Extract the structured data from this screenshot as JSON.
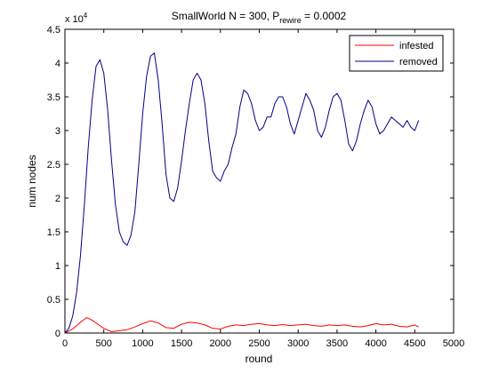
{
  "chart_data": {
    "type": "line",
    "title_main": "SmallWorld N = 300, P",
    "title_sub": "rewire",
    "title_tail": " = 0.0002",
    "xlabel": "round",
    "ylabel": "num nodes",
    "y_exponent_base": "x 10",
    "y_exponent_power": "4",
    "xlim": [
      0,
      5000
    ],
    "ylim": [
      0,
      45000
    ],
    "x_ticks": [
      0,
      500,
      1000,
      1500,
      2000,
      2500,
      3000,
      3500,
      4000,
      4500,
      5000
    ],
    "x_tick_labels": [
      "0",
      "500",
      "1000",
      "1500",
      "2000",
      "2500",
      "3000",
      "3500",
      "4000",
      "4500",
      "5000"
    ],
    "y_ticks": [
      0,
      5000,
      10000,
      15000,
      20000,
      25000,
      30000,
      35000,
      40000,
      45000
    ],
    "y_tick_labels": [
      "0",
      "0.5",
      "1",
      "1.5",
      "2",
      "2.5",
      "3",
      "3.5",
      "4",
      "4.5"
    ],
    "grid": false,
    "legend_position": "top-right",
    "series": [
      {
        "name": "infested",
        "color": "#ff0000",
        "x": [
          0,
          100,
          200,
          280,
          350,
          400,
          500,
          600,
          700,
          800,
          900,
          1000,
          1100,
          1200,
          1300,
          1400,
          1500,
          1600,
          1700,
          1800,
          1900,
          2000,
          2100,
          2200,
          2300,
          2400,
          2500,
          2600,
          2700,
          2800,
          2900,
          3000,
          3100,
          3200,
          3300,
          3400,
          3500,
          3600,
          3700,
          3800,
          3900,
          4000,
          4100,
          4200,
          4300,
          4400,
          4500,
          4550
        ],
        "y": [
          0,
          600,
          1600,
          2300,
          1900,
          1500,
          700,
          200,
          350,
          500,
          900,
          1400,
          1800,
          1500,
          800,
          700,
          1300,
          1600,
          1500,
          1200,
          700,
          600,
          1000,
          1200,
          1100,
          1300,
          1400,
          1200,
          1100,
          1250,
          1100,
          1200,
          1300,
          1100,
          1000,
          1200,
          1100,
          1200,
          1000,
          900,
          1100,
          1400,
          1200,
          1300,
          1000,
          900,
          1200,
          900
        ]
      },
      {
        "name": "removed",
        "color": "#00008b",
        "x": [
          0,
          50,
          100,
          150,
          200,
          250,
          300,
          350,
          400,
          450,
          500,
          550,
          600,
          650,
          700,
          750,
          800,
          850,
          900,
          950,
          1000,
          1050,
          1100,
          1150,
          1200,
          1250,
          1300,
          1350,
          1400,
          1450,
          1500,
          1550,
          1600,
          1650,
          1700,
          1750,
          1800,
          1850,
          1900,
          1950,
          2000,
          2050,
          2100,
          2150,
          2200,
          2250,
          2300,
          2350,
          2400,
          2450,
          2500,
          2550,
          2600,
          2650,
          2700,
          2750,
          2800,
          2850,
          2900,
          2950,
          3000,
          3050,
          3100,
          3150,
          3200,
          3250,
          3300,
          3350,
          3400,
          3450,
          3500,
          3550,
          3600,
          3650,
          3700,
          3750,
          3800,
          3850,
          3900,
          3950,
          4000,
          4050,
          4100,
          4150,
          4200,
          4250,
          4300,
          4350,
          4400,
          4450,
          4500,
          4550
        ],
        "y": [
          0,
          700,
          2500,
          6000,
          11500,
          19000,
          27500,
          34500,
          39500,
          40500,
          38500,
          33000,
          25500,
          19000,
          15000,
          13500,
          13000,
          14500,
          18000,
          25000,
          32500,
          38000,
          41000,
          41500,
          37500,
          31000,
          23500,
          20000,
          19500,
          21500,
          25500,
          30000,
          34000,
          37500,
          38500,
          37500,
          34000,
          28500,
          24000,
          23000,
          22500,
          24000,
          25000,
          27500,
          29500,
          33500,
          36000,
          35500,
          34000,
          31500,
          30000,
          30500,
          32000,
          32000,
          34000,
          35000,
          35000,
          33500,
          31000,
          29500,
          31500,
          33500,
          35500,
          34500,
          33000,
          30000,
          29000,
          30500,
          33000,
          35000,
          35500,
          34500,
          31500,
          28000,
          27000,
          28500,
          31000,
          33000,
          34500,
          33500,
          31000,
          29500,
          30000,
          31000,
          32000,
          31500,
          31000,
          30500,
          31500,
          30500,
          30000,
          31500
        ]
      }
    ]
  }
}
